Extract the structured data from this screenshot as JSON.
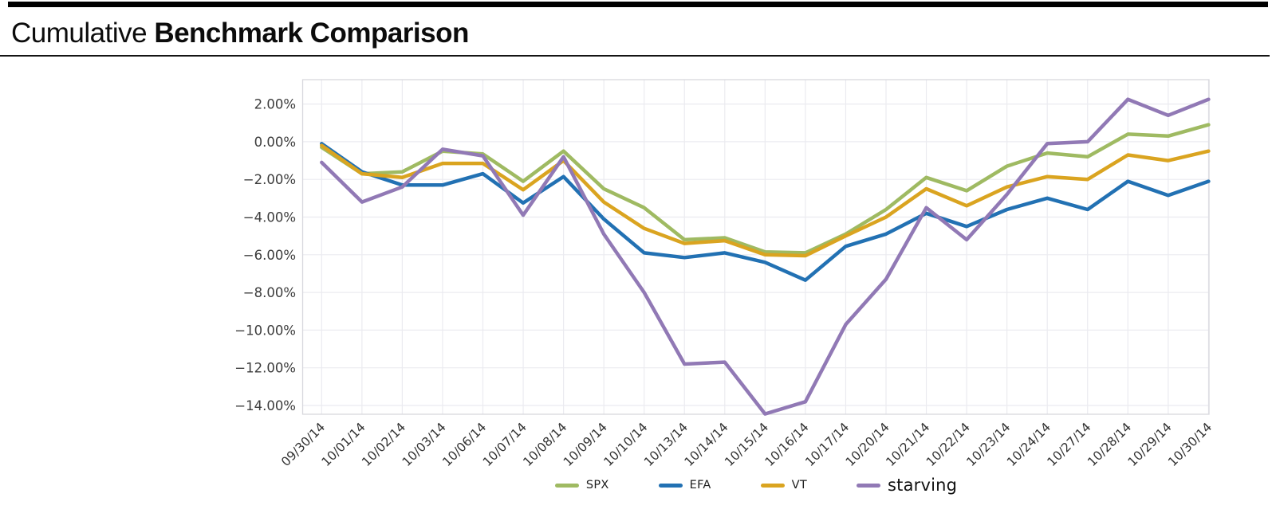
{
  "header": {
    "title_regular": "Cumulative",
    "title_bold": "Benchmark Comparison"
  },
  "chart_data": {
    "type": "line",
    "title": "Cumulative Benchmark Comparison",
    "xlabel": "",
    "ylabel": "",
    "grid": true,
    "legend_position": "bottom-center",
    "ylim": [
      -14.6,
      3.3
    ],
    "y_ticks": [
      {
        "value": 2,
        "label": "2.00%"
      },
      {
        "value": 0,
        "label": "0.00%"
      },
      {
        "value": -2,
        "label": "−2.00%"
      },
      {
        "value": -4,
        "label": "−4.00%"
      },
      {
        "value": -6,
        "label": "−6.00%"
      },
      {
        "value": -8,
        "label": "−8.00%"
      },
      {
        "value": -10,
        "label": "−10.00%"
      },
      {
        "value": -12,
        "label": "−12.00%"
      },
      {
        "value": -14,
        "label": "−14.00%"
      }
    ],
    "categories": [
      "09/30/14",
      "10/01/14",
      "10/02/14",
      "10/03/14",
      "10/06/14",
      "10/07/14",
      "10/08/14",
      "10/09/14",
      "10/10/14",
      "10/13/14",
      "10/14/14",
      "10/15/14",
      "10/16/14",
      "10/17/14",
      "10/20/14",
      "10/21/14",
      "10/22/14",
      "10/23/14",
      "10/24/14",
      "10/27/14",
      "10/28/14",
      "10/29/14",
      "10/30/14"
    ],
    "series": [
      {
        "name": "SPX",
        "color": "#9fba62",
        "values": [
          -0.3,
          -1.7,
          -1.6,
          -0.5,
          -0.65,
          -2.1,
          -0.5,
          -2.5,
          -3.5,
          -5.2,
          -5.1,
          -5.85,
          -5.9,
          -4.9,
          -3.6,
          -1.9,
          -2.6,
          -1.3,
          -0.6,
          -0.8,
          0.4,
          0.3,
          0.9
        ]
      },
      {
        "name": "EFA",
        "color": "#2271b3",
        "values": [
          -0.1,
          -1.6,
          -2.3,
          -2.3,
          -1.7,
          -3.25,
          -1.85,
          -4.1,
          -5.9,
          -6.15,
          -5.9,
          -6.4,
          -7.35,
          -5.55,
          -4.9,
          -3.8,
          -4.5,
          -3.6,
          -3.0,
          -3.6,
          -2.1,
          -2.85,
          -2.1
        ]
      },
      {
        "name": "VT",
        "color": "#daa420",
        "values": [
          -0.2,
          -1.7,
          -1.9,
          -1.15,
          -1.15,
          -2.55,
          -1.0,
          -3.2,
          -4.6,
          -5.4,
          -5.25,
          -6.0,
          -6.05,
          -5.0,
          -4.0,
          -2.5,
          -3.4,
          -2.4,
          -1.85,
          -2.0,
          -0.7,
          -1.0,
          -0.5
        ]
      },
      {
        "name": "starving",
        "color": "#9179b5",
        "values": [
          -1.1,
          -3.2,
          -2.4,
          -0.4,
          -0.75,
          -3.9,
          -0.8,
          -4.9,
          -8.0,
          -11.8,
          -11.7,
          -14.45,
          -13.8,
          -9.7,
          -7.3,
          -3.5,
          -5.2,
          -2.8,
          -0.1,
          0.0,
          2.25,
          1.4,
          2.25
        ],
        "legend_large": true
      }
    ]
  }
}
